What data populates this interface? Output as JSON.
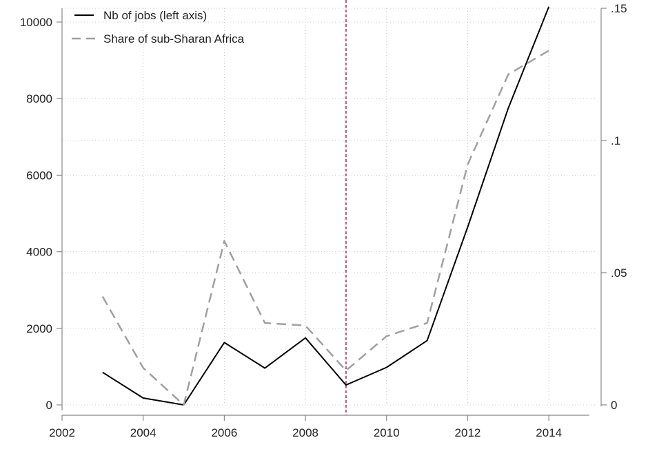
{
  "chart_data": {
    "type": "line",
    "title": "",
    "xlabel": "",
    "ylabel": "",
    "x": [
      2003,
      2004,
      2005,
      2006,
      2007,
      2008,
      2009,
      2010,
      2011,
      2012,
      2013,
      2014
    ],
    "xlim": [
      2002,
      2015
    ],
    "x_ticks": [
      2002,
      2004,
      2006,
      2008,
      2010,
      2012,
      2014
    ],
    "x_tick_labels": [
      "2002",
      "2004",
      "2006",
      "2008",
      "2010",
      "2012",
      "2014"
    ],
    "ylim_left": [
      0,
      10000
    ],
    "y_ticks_left": [
      0,
      2000,
      4000,
      6000,
      8000,
      10000
    ],
    "y_tick_labels_left": [
      "0",
      "2000",
      "4000",
      "6000",
      "8000",
      "10000"
    ],
    "ylim_right": [
      0,
      0.15
    ],
    "y_ticks_right": [
      0,
      0.05,
      0.1,
      0.15
    ],
    "y_tick_labels_right": [
      "0",
      ".05",
      ".1",
      ".15"
    ],
    "series": [
      {
        "name": "Nb of jobs (left axis)",
        "axis": "left",
        "style": "solid",
        "color": "#000000",
        "values": [
          850,
          180,
          0,
          1630,
          960,
          1750,
          520,
          980,
          1680,
          4650,
          7750,
          10400
        ]
      },
      {
        "name": "Share of sub-Sharan Africa",
        "axis": "right",
        "style": "dashed",
        "color": "#a0a0a0",
        "values": [
          0.041,
          0.014,
          0.0,
          0.062,
          0.031,
          0.03,
          0.013,
          0.026,
          0.031,
          0.091,
          0.125,
          0.134
        ]
      }
    ],
    "reference_line": {
      "x": 2009,
      "color": "#c8507e",
      "style": "dashed"
    },
    "grid": true,
    "legend_position": "top-left",
    "colors": {
      "grid": "#c8c8c8",
      "axis": "#888888"
    }
  }
}
